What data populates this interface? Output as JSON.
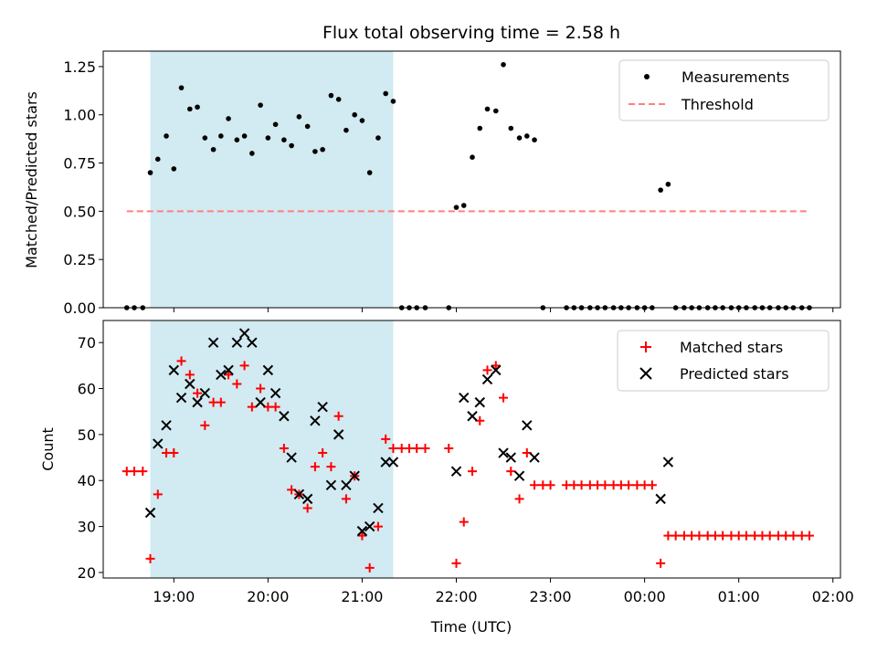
{
  "colors": {
    "shade": "#add8e6",
    "threshold": "#ff7f7f",
    "matched": "#ff0000",
    "predicted": "#000000",
    "measure": "#000000"
  },
  "chart_data": [
    {
      "type": "scatter",
      "title": "Flux total observing time = 2.58 h",
      "ylabel": "Matched/Predicted stars",
      "xlabel": "",
      "x_unit": "hours since 19:00 UTC",
      "xlim": [
        -0.75,
        7.08
      ],
      "ylim": [
        0,
        1.33
      ],
      "yticks": [
        0,
        0.25,
        0.5,
        0.75,
        1.0,
        1.25
      ],
      "ytick_labels": [
        "0.00",
        "0.25",
        "0.50",
        "0.75",
        "1.00",
        "1.25"
      ],
      "shaded_span": [
        -0.25,
        2.33
      ],
      "legend": {
        "position": "top-right",
        "items": [
          "Measurements",
          "Threshold"
        ]
      },
      "threshold": {
        "name": "Threshold",
        "y": 0.5,
        "x": [
          -0.5,
          6.75
        ]
      },
      "series": [
        {
          "name": "Measurements",
          "points": [
            [
              -0.5,
              0
            ],
            [
              -0.42,
              0
            ],
            [
              -0.33,
              0
            ],
            [
              -0.25,
              0.7
            ],
            [
              -0.17,
              0.77
            ],
            [
              -0.08,
              0.89
            ],
            [
              0.0,
              0.72
            ],
            [
              0.08,
              1.14
            ],
            [
              0.17,
              1.03
            ],
            [
              0.25,
              1.04
            ],
            [
              0.33,
              0.88
            ],
            [
              0.42,
              0.82
            ],
            [
              0.5,
              0.89
            ],
            [
              0.58,
              0.98
            ],
            [
              0.67,
              0.87
            ],
            [
              0.75,
              0.89
            ],
            [
              0.83,
              0.8
            ],
            [
              0.92,
              1.05
            ],
            [
              1.0,
              0.88
            ],
            [
              1.08,
              0.95
            ],
            [
              1.17,
              0.87
            ],
            [
              1.25,
              0.84
            ],
            [
              1.33,
              0.99
            ],
            [
              1.42,
              0.94
            ],
            [
              1.5,
              0.81
            ],
            [
              1.58,
              0.82
            ],
            [
              1.67,
              1.1
            ],
            [
              1.75,
              1.08
            ],
            [
              1.83,
              0.92
            ],
            [
              1.92,
              1.0
            ],
            [
              2.0,
              0.97
            ],
            [
              2.08,
              0.7
            ],
            [
              2.17,
              0.88
            ],
            [
              2.25,
              1.11
            ],
            [
              2.33,
              1.07
            ],
            [
              2.42,
              0
            ],
            [
              2.5,
              0
            ],
            [
              2.58,
              0
            ],
            [
              2.67,
              0
            ],
            [
              2.92,
              0
            ],
            [
              3.0,
              0.52
            ],
            [
              3.08,
              0.53
            ],
            [
              3.17,
              0.78
            ],
            [
              3.25,
              0.93
            ],
            [
              3.33,
              1.03
            ],
            [
              3.42,
              1.02
            ],
            [
              3.5,
              1.26
            ],
            [
              3.58,
              0.93
            ],
            [
              3.67,
              0.88
            ],
            [
              3.75,
              0.89
            ],
            [
              3.83,
              0.87
            ],
            [
              3.92,
              0
            ],
            [
              4.17,
              0
            ],
            [
              4.25,
              0
            ],
            [
              4.33,
              0
            ],
            [
              4.42,
              0
            ],
            [
              4.5,
              0
            ],
            [
              4.58,
              0
            ],
            [
              4.67,
              0
            ],
            [
              4.75,
              0
            ],
            [
              4.83,
              0
            ],
            [
              4.92,
              0
            ],
            [
              5.0,
              0
            ],
            [
              5.08,
              0
            ],
            [
              5.17,
              0.61
            ],
            [
              5.25,
              0.64
            ],
            [
              5.33,
              0
            ],
            [
              5.42,
              0
            ],
            [
              5.5,
              0
            ],
            [
              5.58,
              0
            ],
            [
              5.67,
              0
            ],
            [
              5.75,
              0
            ],
            [
              5.83,
              0
            ],
            [
              5.92,
              0
            ],
            [
              6.0,
              0
            ],
            [
              6.08,
              0
            ],
            [
              6.17,
              0
            ],
            [
              6.25,
              0
            ],
            [
              6.33,
              0
            ],
            [
              6.42,
              0
            ],
            [
              6.5,
              0
            ],
            [
              6.58,
              0
            ],
            [
              6.67,
              0
            ],
            [
              6.75,
              0
            ]
          ]
        }
      ]
    },
    {
      "type": "scatter",
      "title": "",
      "ylabel": "Count",
      "xlabel": "Time (UTC)",
      "x_unit": "hours since 19:00 UTC",
      "xlim": [
        -0.75,
        7.08
      ],
      "ylim": [
        18.8,
        74.8
      ],
      "yticks": [
        20,
        30,
        40,
        50,
        60,
        70
      ],
      "ytick_labels": [
        "20",
        "30",
        "40",
        "50",
        "60",
        "70"
      ],
      "xticks": [
        0,
        1,
        2,
        3,
        4,
        5,
        6,
        7
      ],
      "xtick_labels": [
        "19:00",
        "20:00",
        "21:00",
        "22:00",
        "23:00",
        "00:00",
        "01:00",
        "02:00"
      ],
      "shaded_span": [
        -0.25,
        2.33
      ],
      "legend": {
        "position": "top-right",
        "items": [
          "Matched stars",
          "Predicted stars"
        ]
      },
      "series": [
        {
          "name": "Matched stars",
          "points": [
            [
              -0.5,
              42
            ],
            [
              -0.42,
              42
            ],
            [
              -0.33,
              42
            ],
            [
              -0.25,
              23
            ],
            [
              -0.17,
              37
            ],
            [
              -0.08,
              46
            ],
            [
              0.0,
              46
            ],
            [
              0.08,
              66
            ],
            [
              0.17,
              63
            ],
            [
              0.25,
              59
            ],
            [
              0.33,
              52
            ],
            [
              0.42,
              57
            ],
            [
              0.5,
              57
            ],
            [
              0.58,
              63
            ],
            [
              0.67,
              61
            ],
            [
              0.75,
              65
            ],
            [
              0.83,
              56
            ],
            [
              0.92,
              60
            ],
            [
              1.0,
              56
            ],
            [
              1.08,
              56
            ],
            [
              1.17,
              47
            ],
            [
              1.25,
              38
            ],
            [
              1.33,
              37
            ],
            [
              1.42,
              34
            ],
            [
              1.5,
              43
            ],
            [
              1.58,
              46
            ],
            [
              1.67,
              43
            ],
            [
              1.75,
              54
            ],
            [
              1.83,
              36
            ],
            [
              1.92,
              41
            ],
            [
              2.0,
              28
            ],
            [
              2.08,
              21
            ],
            [
              2.17,
              30
            ],
            [
              2.25,
              49
            ],
            [
              2.33,
              47
            ],
            [
              2.42,
              47
            ],
            [
              2.5,
              47
            ],
            [
              2.58,
              47
            ],
            [
              2.67,
              47
            ],
            [
              2.92,
              47
            ],
            [
              3.0,
              22
            ],
            [
              3.08,
              31
            ],
            [
              3.17,
              42
            ],
            [
              3.25,
              53
            ],
            [
              3.33,
              64
            ],
            [
              3.42,
              65
            ],
            [
              3.5,
              58
            ],
            [
              3.58,
              42
            ],
            [
              3.67,
              36
            ],
            [
              3.75,
              46
            ],
            [
              3.83,
              39
            ],
            [
              3.92,
              39
            ],
            [
              4.0,
              39
            ],
            [
              4.17,
              39
            ],
            [
              4.25,
              39
            ],
            [
              4.33,
              39
            ],
            [
              4.42,
              39
            ],
            [
              4.5,
              39
            ],
            [
              4.58,
              39
            ],
            [
              4.67,
              39
            ],
            [
              4.75,
              39
            ],
            [
              4.83,
              39
            ],
            [
              4.92,
              39
            ],
            [
              5.0,
              39
            ],
            [
              5.08,
              39
            ],
            [
              5.17,
              22
            ],
            [
              5.25,
              28
            ],
            [
              5.33,
              28
            ],
            [
              5.42,
              28
            ],
            [
              5.5,
              28
            ],
            [
              5.58,
              28
            ],
            [
              5.67,
              28
            ],
            [
              5.75,
              28
            ],
            [
              5.83,
              28
            ],
            [
              5.92,
              28
            ],
            [
              6.0,
              28
            ],
            [
              6.08,
              28
            ],
            [
              6.17,
              28
            ],
            [
              6.25,
              28
            ],
            [
              6.33,
              28
            ],
            [
              6.42,
              28
            ],
            [
              6.5,
              28
            ],
            [
              6.58,
              28
            ],
            [
              6.67,
              28
            ],
            [
              6.75,
              28
            ]
          ]
        },
        {
          "name": "Predicted stars",
          "points": [
            [
              -0.25,
              33
            ],
            [
              -0.17,
              48
            ],
            [
              -0.08,
              52
            ],
            [
              0.0,
              64
            ],
            [
              0.08,
              58
            ],
            [
              0.17,
              61
            ],
            [
              0.25,
              57
            ],
            [
              0.33,
              59
            ],
            [
              0.42,
              70
            ],
            [
              0.5,
              63
            ],
            [
              0.58,
              64
            ],
            [
              0.67,
              70
            ],
            [
              0.75,
              72
            ],
            [
              0.83,
              70
            ],
            [
              0.92,
              57
            ],
            [
              1.0,
              64
            ],
            [
              1.08,
              59
            ],
            [
              1.17,
              54
            ],
            [
              1.25,
              45
            ],
            [
              1.33,
              37
            ],
            [
              1.42,
              36
            ],
            [
              1.5,
              53
            ],
            [
              1.58,
              56
            ],
            [
              1.67,
              39
            ],
            [
              1.75,
              50
            ],
            [
              1.83,
              39
            ],
            [
              1.92,
              41
            ],
            [
              2.0,
              29
            ],
            [
              2.08,
              30
            ],
            [
              2.17,
              34
            ],
            [
              2.25,
              44
            ],
            [
              2.33,
              44
            ],
            [
              3.0,
              42
            ],
            [
              3.08,
              58
            ],
            [
              3.17,
              54
            ],
            [
              3.25,
              57
            ],
            [
              3.33,
              62
            ],
            [
              3.42,
              64
            ],
            [
              3.5,
              46
            ],
            [
              3.58,
              45
            ],
            [
              3.67,
              41
            ],
            [
              3.75,
              52
            ],
            [
              3.83,
              45
            ],
            [
              5.17,
              36
            ],
            [
              5.25,
              44
            ]
          ]
        }
      ]
    }
  ]
}
